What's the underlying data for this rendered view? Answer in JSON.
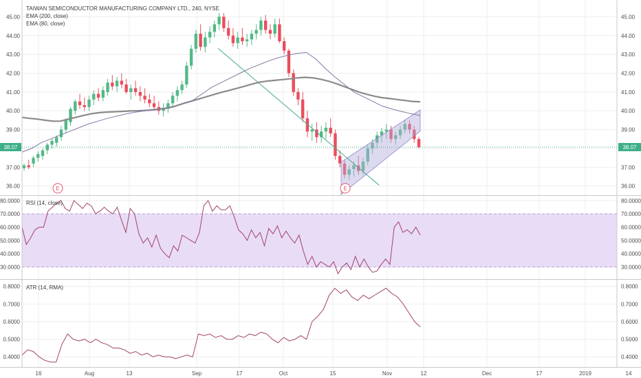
{
  "colors": {
    "up": "#53b987",
    "down": "#eb4d5c",
    "ema200": "#8a8a8a",
    "ema80": "#7d7aa2",
    "rsi": "#a1426b",
    "rsi_band": "#e9dcf6",
    "atr": "#a1426b",
    "channel": "#b3acdc",
    "trendline": "#41a890",
    "price_line": "#3cae88",
    "price_tag": "#3cae88",
    "earnings": "#e0556c"
  },
  "chart_data": [
    {
      "type": "candlestick",
      "title": "TAIWAN SEMICONDUCTOR MANUFACTURING COMPANY LTD., 240, NYSE",
      "indicators": [
        {
          "name": "EMA (200, close)",
          "values": [
            39.65,
            39.6,
            39.56,
            39.5,
            39.45,
            39.45,
            39.55,
            39.65,
            39.75,
            39.84,
            39.9,
            39.93,
            39.95,
            39.97,
            39.99,
            40.0,
            40.02,
            40.05,
            40.1,
            40.15,
            40.25,
            40.38,
            40.5,
            40.62,
            40.74,
            40.86,
            40.98,
            41.08,
            41.19,
            41.3,
            41.42,
            41.52,
            41.58,
            41.62,
            41.66,
            41.7,
            41.75,
            41.78,
            41.75,
            41.68,
            41.58,
            41.45,
            41.3,
            41.15,
            41.0,
            40.88,
            40.78,
            40.7,
            40.65,
            40.6,
            40.55,
            40.5,
            40.48
          ]
        },
        {
          "name": "EMA (80, close)",
          "values": [
            37.8,
            38.0,
            38.3,
            38.5,
            38.7,
            38.9,
            39.1,
            39.3,
            39.45,
            39.6,
            39.72,
            39.84,
            39.93,
            40.0,
            40.05,
            40.1,
            40.2,
            40.4,
            40.55,
            40.9,
            41.25,
            41.5,
            41.75,
            42.0,
            42.25,
            42.45,
            42.65,
            42.82,
            42.95,
            43.05,
            43.1,
            42.75,
            42.25,
            41.8,
            41.4,
            41.0,
            40.75,
            40.5,
            40.25,
            40.1,
            39.97,
            39.85,
            39.75
          ]
        },
        {
          "name": "RSI (14, close)",
          "values": [
            60,
            47,
            52,
            58,
            60,
            60,
            72,
            75,
            78,
            80,
            74,
            72,
            80,
            77,
            74,
            78,
            76,
            70,
            72,
            75,
            72,
            70,
            75,
            65,
            56,
            74,
            70,
            55,
            48,
            52,
            45,
            54,
            44,
            40,
            37,
            46,
            42,
            54,
            52,
            50,
            48,
            56,
            76,
            80,
            72,
            76,
            73,
            73,
            76,
            68,
            58,
            55,
            50,
            58,
            52,
            56,
            46,
            59,
            55,
            61,
            52,
            57,
            52,
            48,
            54,
            42,
            32,
            38,
            30,
            34,
            32,
            30,
            34,
            25,
            30,
            33,
            28,
            38,
            30,
            36,
            30,
            26,
            27,
            32,
            36,
            32,
            60,
            64,
            56,
            58,
            55,
            60,
            54
          ]
        },
        {
          "name": "ATR (14, RMA)",
          "values": [
            0.41,
            0.44,
            0.43,
            0.4,
            0.38,
            0.37,
            0.37,
            0.47,
            0.53,
            0.5,
            0.49,
            0.5,
            0.48,
            0.5,
            0.48,
            0.47,
            0.45,
            0.45,
            0.44,
            0.42,
            0.43,
            0.41,
            0.42,
            0.4,
            0.41,
            0.4,
            0.4,
            0.39,
            0.4,
            0.41,
            0.4,
            0.53,
            0.52,
            0.53,
            0.51,
            0.52,
            0.5,
            0.5,
            0.52,
            0.51,
            0.53,
            0.52,
            0.54,
            0.53,
            0.5,
            0.48,
            0.51,
            0.49,
            0.5,
            0.52,
            0.5,
            0.6,
            0.63,
            0.67,
            0.75,
            0.79,
            0.76,
            0.78,
            0.74,
            0.72,
            0.75,
            0.73,
            0.75,
            0.77,
            0.79,
            0.76,
            0.74,
            0.7,
            0.65,
            0.6,
            0.57
          ]
        }
      ],
      "price_axis": {
        "ticks": [
          "45.00",
          "44.00",
          "43.00",
          "42.00",
          "41.00",
          "40.00",
          "39.00",
          "38.00",
          "37.00",
          "36.00"
        ],
        "ylim": [
          35.55,
          45.6
        ],
        "current": "38.07"
      },
      "rsi_axis": {
        "ticks": [
          "80.0000",
          "70.0000",
          "60.0000",
          "50.0000",
          "40.0000",
          "30.0000"
        ],
        "ylim": [
          22,
          83
        ]
      },
      "atr_axis": {
        "ticks": [
          "0.8000",
          "0.7000",
          "0.6000",
          "0.5000",
          "0.4000"
        ],
        "ylim": [
          0.35,
          0.83
        ]
      },
      "x_axis": {
        "ticks": [
          "16",
          "Aug",
          "13",
          "Sep",
          "17",
          "Oct",
          "15",
          "Nov",
          "12",
          "Dec",
          "17",
          "2019",
          "14"
        ]
      },
      "events": [
        "E",
        "E"
      ],
      "candles": [
        [
          36.95,
          37.2,
          36.8,
          37.1
        ],
        [
          37.1,
          37.4,
          36.9,
          37.0
        ],
        [
          37.2,
          37.6,
          37.0,
          37.5
        ],
        [
          37.5,
          37.85,
          37.3,
          37.7
        ],
        [
          37.6,
          38.0,
          37.4,
          37.9
        ],
        [
          37.9,
          38.3,
          37.7,
          38.2
        ],
        [
          38.2,
          38.5,
          38.0,
          38.4
        ],
        [
          38.3,
          38.7,
          38.1,
          38.6
        ],
        [
          38.6,
          39.2,
          38.4,
          39.0
        ],
        [
          39.0,
          39.6,
          38.8,
          39.5
        ],
        [
          39.4,
          40.2,
          39.2,
          40.1
        ],
        [
          40.0,
          40.6,
          39.8,
          40.5
        ],
        [
          40.5,
          40.9,
          40.1,
          40.3
        ],
        [
          40.3,
          40.7,
          40.0,
          40.2
        ],
        [
          40.2,
          40.8,
          40.0,
          40.6
        ],
        [
          40.6,
          41.1,
          40.3,
          40.9
        ],
        [
          40.9,
          41.2,
          40.5,
          40.7
        ],
        [
          40.7,
          41.3,
          40.5,
          41.1
        ],
        [
          41.0,
          41.7,
          40.8,
          41.5
        ],
        [
          41.5,
          41.9,
          41.1,
          41.3
        ],
        [
          41.3,
          41.8,
          41.0,
          41.6
        ],
        [
          41.6,
          42.0,
          41.2,
          41.4
        ],
        [
          41.4,
          41.7,
          40.9,
          41.0
        ],
        [
          41.0,
          41.4,
          40.6,
          41.2
        ],
        [
          41.2,
          41.6,
          40.8,
          41.0
        ],
        [
          41.0,
          41.3,
          40.5,
          40.8
        ],
        [
          40.8,
          41.2,
          40.4,
          40.6
        ],
        [
          40.6,
          40.9,
          40.2,
          40.4
        ],
        [
          40.4,
          40.8,
          40.0,
          40.2
        ],
        [
          40.2,
          40.5,
          39.8,
          40.0
        ],
        [
          40.0,
          40.4,
          39.7,
          40.1
        ],
        [
          40.1,
          40.6,
          39.9,
          40.4
        ],
        [
          40.4,
          41.0,
          40.2,
          40.8
        ],
        [
          40.8,
          41.3,
          40.5,
          41.1
        ],
        [
          41.1,
          41.6,
          40.9,
          41.4
        ],
        [
          41.4,
          42.6,
          41.2,
          42.4
        ],
        [
          42.4,
          43.5,
          42.2,
          43.3
        ],
        [
          43.3,
          44.3,
          43.1,
          44.1
        ],
        [
          44.1,
          44.6,
          43.2,
          43.4
        ],
        [
          43.4,
          44.2,
          43.1,
          43.9
        ],
        [
          43.9,
          44.5,
          43.6,
          44.2
        ],
        [
          44.2,
          44.8,
          43.9,
          44.6
        ],
        [
          44.6,
          45.2,
          44.3,
          45.0
        ],
        [
          45.0,
          45.2,
          44.2,
          44.4
        ],
        [
          44.4,
          44.8,
          43.8,
          44.0
        ],
        [
          44.0,
          44.4,
          43.4,
          43.6
        ],
        [
          43.6,
          44.2,
          43.3,
          43.9
        ],
        [
          43.9,
          44.4,
          43.5,
          43.7
        ],
        [
          43.7,
          44.1,
          43.4,
          43.8
        ],
        [
          43.8,
          44.3,
          43.5,
          44.1
        ],
        [
          44.1,
          44.6,
          43.8,
          44.3
        ],
        [
          44.3,
          45.0,
          44.0,
          44.8
        ],
        [
          44.8,
          45.1,
          44.1,
          44.3
        ],
        [
          44.3,
          44.6,
          43.8,
          44.1
        ],
        [
          44.1,
          44.9,
          43.9,
          44.6
        ],
        [
          44.6,
          44.9,
          43.6,
          43.7
        ],
        [
          43.7,
          43.9,
          43.0,
          43.2
        ],
        [
          43.2,
          43.3,
          41.8,
          42.0
        ],
        [
          42.0,
          42.2,
          40.8,
          41.0
        ],
        [
          41.0,
          41.2,
          40.3,
          40.6
        ],
        [
          40.6,
          41.0,
          39.4,
          39.6
        ],
        [
          39.6,
          40.0,
          38.6,
          38.9
        ],
        [
          38.9,
          39.3,
          38.4,
          39.0
        ],
        [
          39.0,
          39.4,
          38.3,
          38.6
        ],
        [
          38.6,
          39.2,
          38.3,
          38.9
        ],
        [
          38.9,
          39.4,
          38.5,
          39.1
        ],
        [
          39.1,
          39.6,
          38.6,
          38.8
        ],
        [
          38.8,
          39.0,
          37.4,
          37.6
        ],
        [
          37.6,
          37.9,
          37.0,
          37.2
        ],
        [
          37.2,
          37.4,
          36.4,
          36.6
        ],
        [
          36.6,
          37.1,
          36.3,
          36.9
        ],
        [
          36.9,
          37.3,
          36.5,
          37.1
        ],
        [
          37.1,
          37.6,
          36.6,
          36.8
        ],
        [
          36.8,
          37.5,
          36.6,
          37.3
        ],
        [
          37.3,
          38.2,
          37.1,
          38.0
        ],
        [
          38.0,
          38.5,
          37.7,
          38.3
        ],
        [
          38.3,
          38.9,
          38.0,
          38.7
        ],
        [
          38.7,
          39.1,
          38.3,
          38.9
        ],
        [
          38.9,
          39.3,
          38.5,
          39.0
        ],
        [
          39.0,
          39.2,
          38.3,
          38.5
        ],
        [
          38.5,
          38.9,
          38.2,
          38.7
        ],
        [
          38.7,
          39.2,
          38.5,
          39.0
        ],
        [
          39.0,
          39.5,
          38.8,
          39.3
        ],
        [
          39.3,
          39.5,
          38.8,
          39.0
        ],
        [
          39.0,
          39.2,
          38.3,
          38.5
        ],
        [
          38.5,
          38.6,
          38.0,
          38.07
        ]
      ]
    }
  ]
}
